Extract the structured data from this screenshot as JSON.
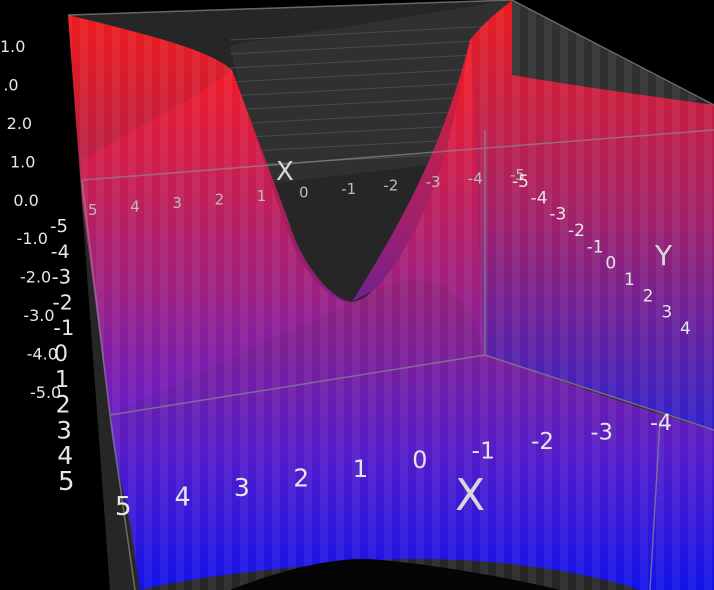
{
  "chart_data": {
    "type": "surface",
    "function": "z = x^2 - y^2",
    "x": [
      -5,
      -4,
      -3,
      -2,
      -1,
      0,
      1,
      2,
      3,
      4,
      5
    ],
    "y": [
      -5,
      -4,
      -3,
      -2,
      -1,
      0,
      1,
      2,
      3,
      4,
      5
    ],
    "colorscale": {
      "low": "#0000ff",
      "high": "#ff0000"
    },
    "opacity": 0.85,
    "grid": true,
    "axes": {
      "x": {
        "label": "X",
        "ticks": [
          "5",
          "4",
          "3",
          "2",
          "1",
          "0",
          "-1",
          "-2",
          "-3",
          "-4"
        ]
      },
      "x_back": {
        "label": "X",
        "ticks": [
          "5",
          "4",
          "3",
          "2",
          "1",
          "0",
          "-1",
          "-2",
          "-3",
          "-4",
          "-5"
        ]
      },
      "y": {
        "label": "Y",
        "ticks": [
          "-5",
          "-4",
          "-3",
          "-2",
          "-1",
          "0",
          "1",
          "2",
          "3",
          "4"
        ]
      },
      "z": {
        "label": "Y",
        "ticks": [
          "1.0",
          ".0",
          "2.0",
          "1.0",
          "0.0",
          "-1.0",
          "-2.0",
          "-3.0",
          "-4.0",
          "-5.0"
        ]
      },
      "left_y": {
        "ticks": [
          "-5",
          "-4",
          "-3",
          "-2",
          "-1",
          "0",
          "1",
          "2",
          "3",
          "4",
          "5"
        ]
      }
    }
  }
}
